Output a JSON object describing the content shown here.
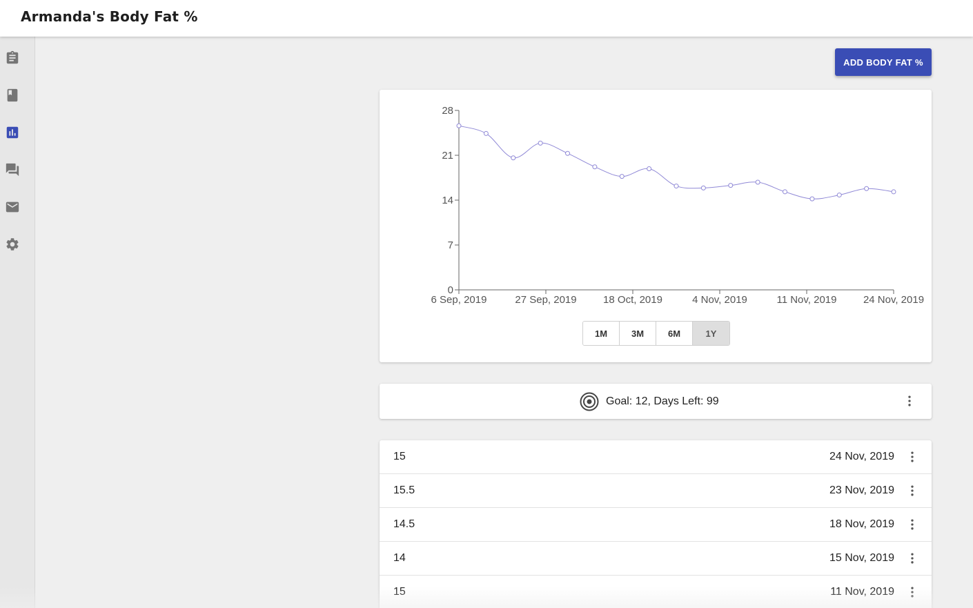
{
  "header": {
    "title": "Armanda's Body Fat %"
  },
  "sidebar": {
    "items": [
      {
        "icon": "clipboard-icon",
        "active": false
      },
      {
        "icon": "book-icon",
        "active": false
      },
      {
        "icon": "bar-chart-icon",
        "active": true
      },
      {
        "icon": "forum-icon",
        "active": false
      },
      {
        "icon": "mail-icon",
        "active": false
      },
      {
        "icon": "gear-icon",
        "active": false
      }
    ],
    "active_color": "#3a4db5",
    "icon_color": "#757575"
  },
  "actions": {
    "add_label": "ADD BODY FAT %"
  },
  "chart_data": {
    "type": "line",
    "x_tick_labels": [
      "6 Sep, 2019",
      "27 Sep, 2019",
      "18 Oct, 2019",
      "4 Nov, 2019",
      "11 Nov, 2019",
      "24 Nov, 2019"
    ],
    "y_ticks": [
      0,
      7,
      14,
      21,
      28
    ],
    "ylim": [
      0,
      28
    ],
    "series": [
      {
        "values": [
          25.6,
          24.4,
          20.6,
          22.9,
          21.3,
          19.2,
          17.7,
          18.9,
          16.2,
          15.9,
          16.3,
          16.8,
          15.3,
          14.2,
          14.8,
          15.8,
          15.3
        ]
      }
    ],
    "line_color": "#8f88d6",
    "grid": false,
    "ranges": [
      "1M",
      "3M",
      "6M",
      "1Y"
    ],
    "active_range": "1Y"
  },
  "goal": {
    "text": "Goal: 12, Days Left: 99"
  },
  "entries": [
    {
      "value": "15",
      "date": "24 Nov, 2019"
    },
    {
      "value": "15.5",
      "date": "23 Nov, 2019"
    },
    {
      "value": "14.5",
      "date": "18 Nov, 2019"
    },
    {
      "value": "14",
      "date": "15 Nov, 2019"
    },
    {
      "value": "15",
      "date": "11 Nov, 2019"
    }
  ]
}
